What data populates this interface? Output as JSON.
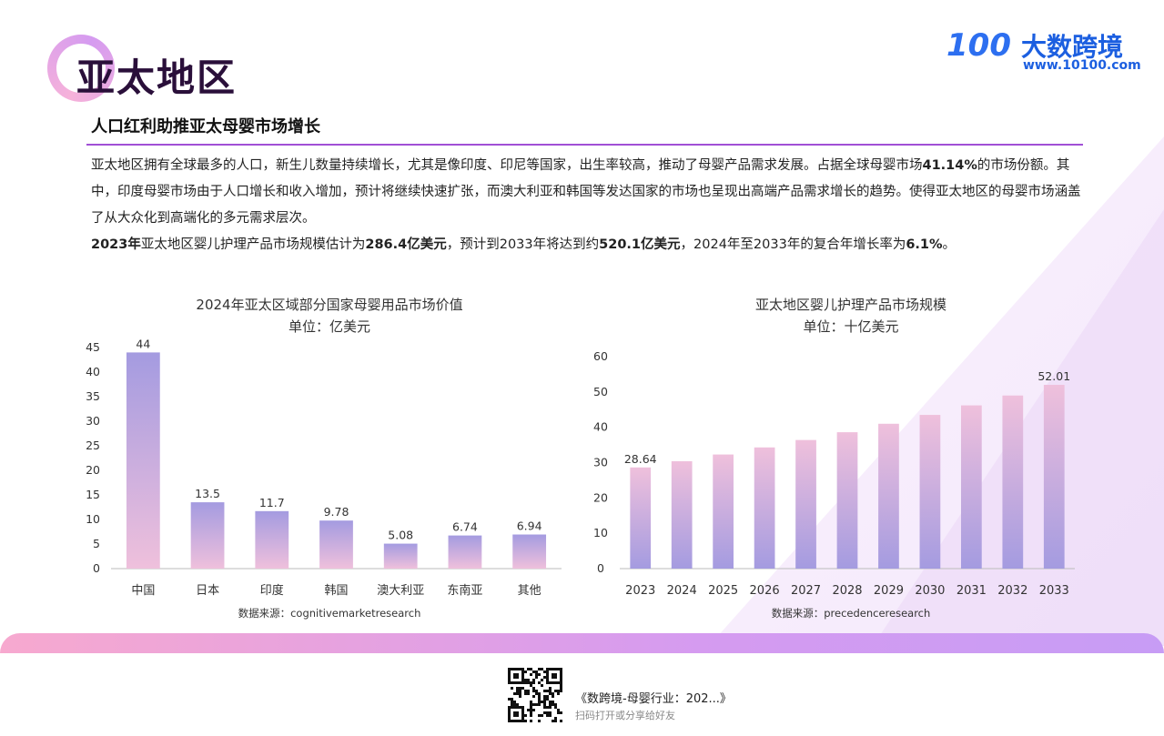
{
  "page": {
    "title": "亚太地区",
    "subtitle": "人口红利助推亚太母婴市场增长"
  },
  "logo": {
    "mark": "100",
    "name": "大数跨境",
    "url": "www.10100.com"
  },
  "paragraphs": [
    {
      "runs": [
        {
          "text": "亚太地区拥有全球最多的人口，新生儿数量持续增长，尤其是像印度、印尼等国家，出生率较高，推动了母婴产品需求发展。占据全球母婴市场",
          "bold": false
        },
        {
          "text": "41.14%",
          "bold": true
        },
        {
          "text": "的市场份额。其中，印度母婴市场由于人口增长和收入增加，预计将继续快速扩张，而澳大利亚和韩国等发达国家的市场也呈现出高端产品需求增长的趋势。使得亚太地区的母婴市场涵盖了从大众化到高端化的多元需求层次。",
          "bold": false
        }
      ]
    },
    {
      "runs": [
        {
          "text": "2023年",
          "bold": true
        },
        {
          "text": "亚太地区婴儿护理产品市场规模估计为",
          "bold": false
        },
        {
          "text": "286.4亿美元",
          "bold": true
        },
        {
          "text": "，预计到2033年将达到约",
          "bold": false
        },
        {
          "text": "520.1亿美元",
          "bold": true
        },
        {
          "text": "，2024年至2033年的复合年增长率为",
          "bold": false
        },
        {
          "text": "6.1%",
          "bold": true
        },
        {
          "text": "。",
          "bold": false
        }
      ]
    }
  ],
  "chart_data": [
    {
      "type": "bar",
      "title": "2024年亚太区域部分国家母婴用品市场价值",
      "subtitle": "单位：亿美元",
      "categories": [
        "中国",
        "日本",
        "印度",
        "韩国",
        "澳大利亚",
        "东南亚",
        "其他"
      ],
      "values": [
        44,
        13.5,
        11.7,
        9.78,
        5.08,
        6.74,
        6.94
      ],
      "data_labels": [
        "44",
        "13.5",
        "11.7",
        "9.78",
        "5.08",
        "6.74",
        "6.94"
      ],
      "ylim": [
        0,
        45
      ],
      "yticks": [
        0,
        5,
        10,
        15,
        20,
        25,
        30,
        35,
        40,
        45
      ],
      "grid": false,
      "source": "数据来源：cognitivemarketresearch",
      "colors": {
        "top": "#a49be0",
        "bottom": "#efc0dc"
      }
    },
    {
      "type": "bar",
      "title": "亚太地区婴儿护理产品市场规模",
      "subtitle": "单位：十亿美元",
      "categories": [
        "2023",
        "2024",
        "2025",
        "2026",
        "2027",
        "2028",
        "2029",
        "2030",
        "2031",
        "2032",
        "2033"
      ],
      "values": [
        28.64,
        30.4,
        32.3,
        34.3,
        36.4,
        38.6,
        41.0,
        43.5,
        46.2,
        49.0,
        52.01
      ],
      "data_labels": [
        "28.64",
        "",
        "",
        "",
        "",
        "",
        "",
        "",
        "",
        "",
        "52.01"
      ],
      "ylim": [
        0,
        60
      ],
      "yticks": [
        0,
        10,
        20,
        30,
        40,
        50,
        60
      ],
      "grid": false,
      "source": "数据来源：precedenceresearch",
      "colors": {
        "top": "#efc0dc",
        "bottom": "#a49be0"
      }
    }
  ],
  "footer": {
    "title": "《数跨境-母婴行业：202...》",
    "subtitle": "扫码打开或分享给好友"
  },
  "colors": {
    "accent": "#a14fd6",
    "title": "#2a0f3a",
    "brand": "#1c5fe0"
  },
  "icons": {
    "logo": "brand-logo-icon",
    "qr": "qr-code-icon"
  }
}
